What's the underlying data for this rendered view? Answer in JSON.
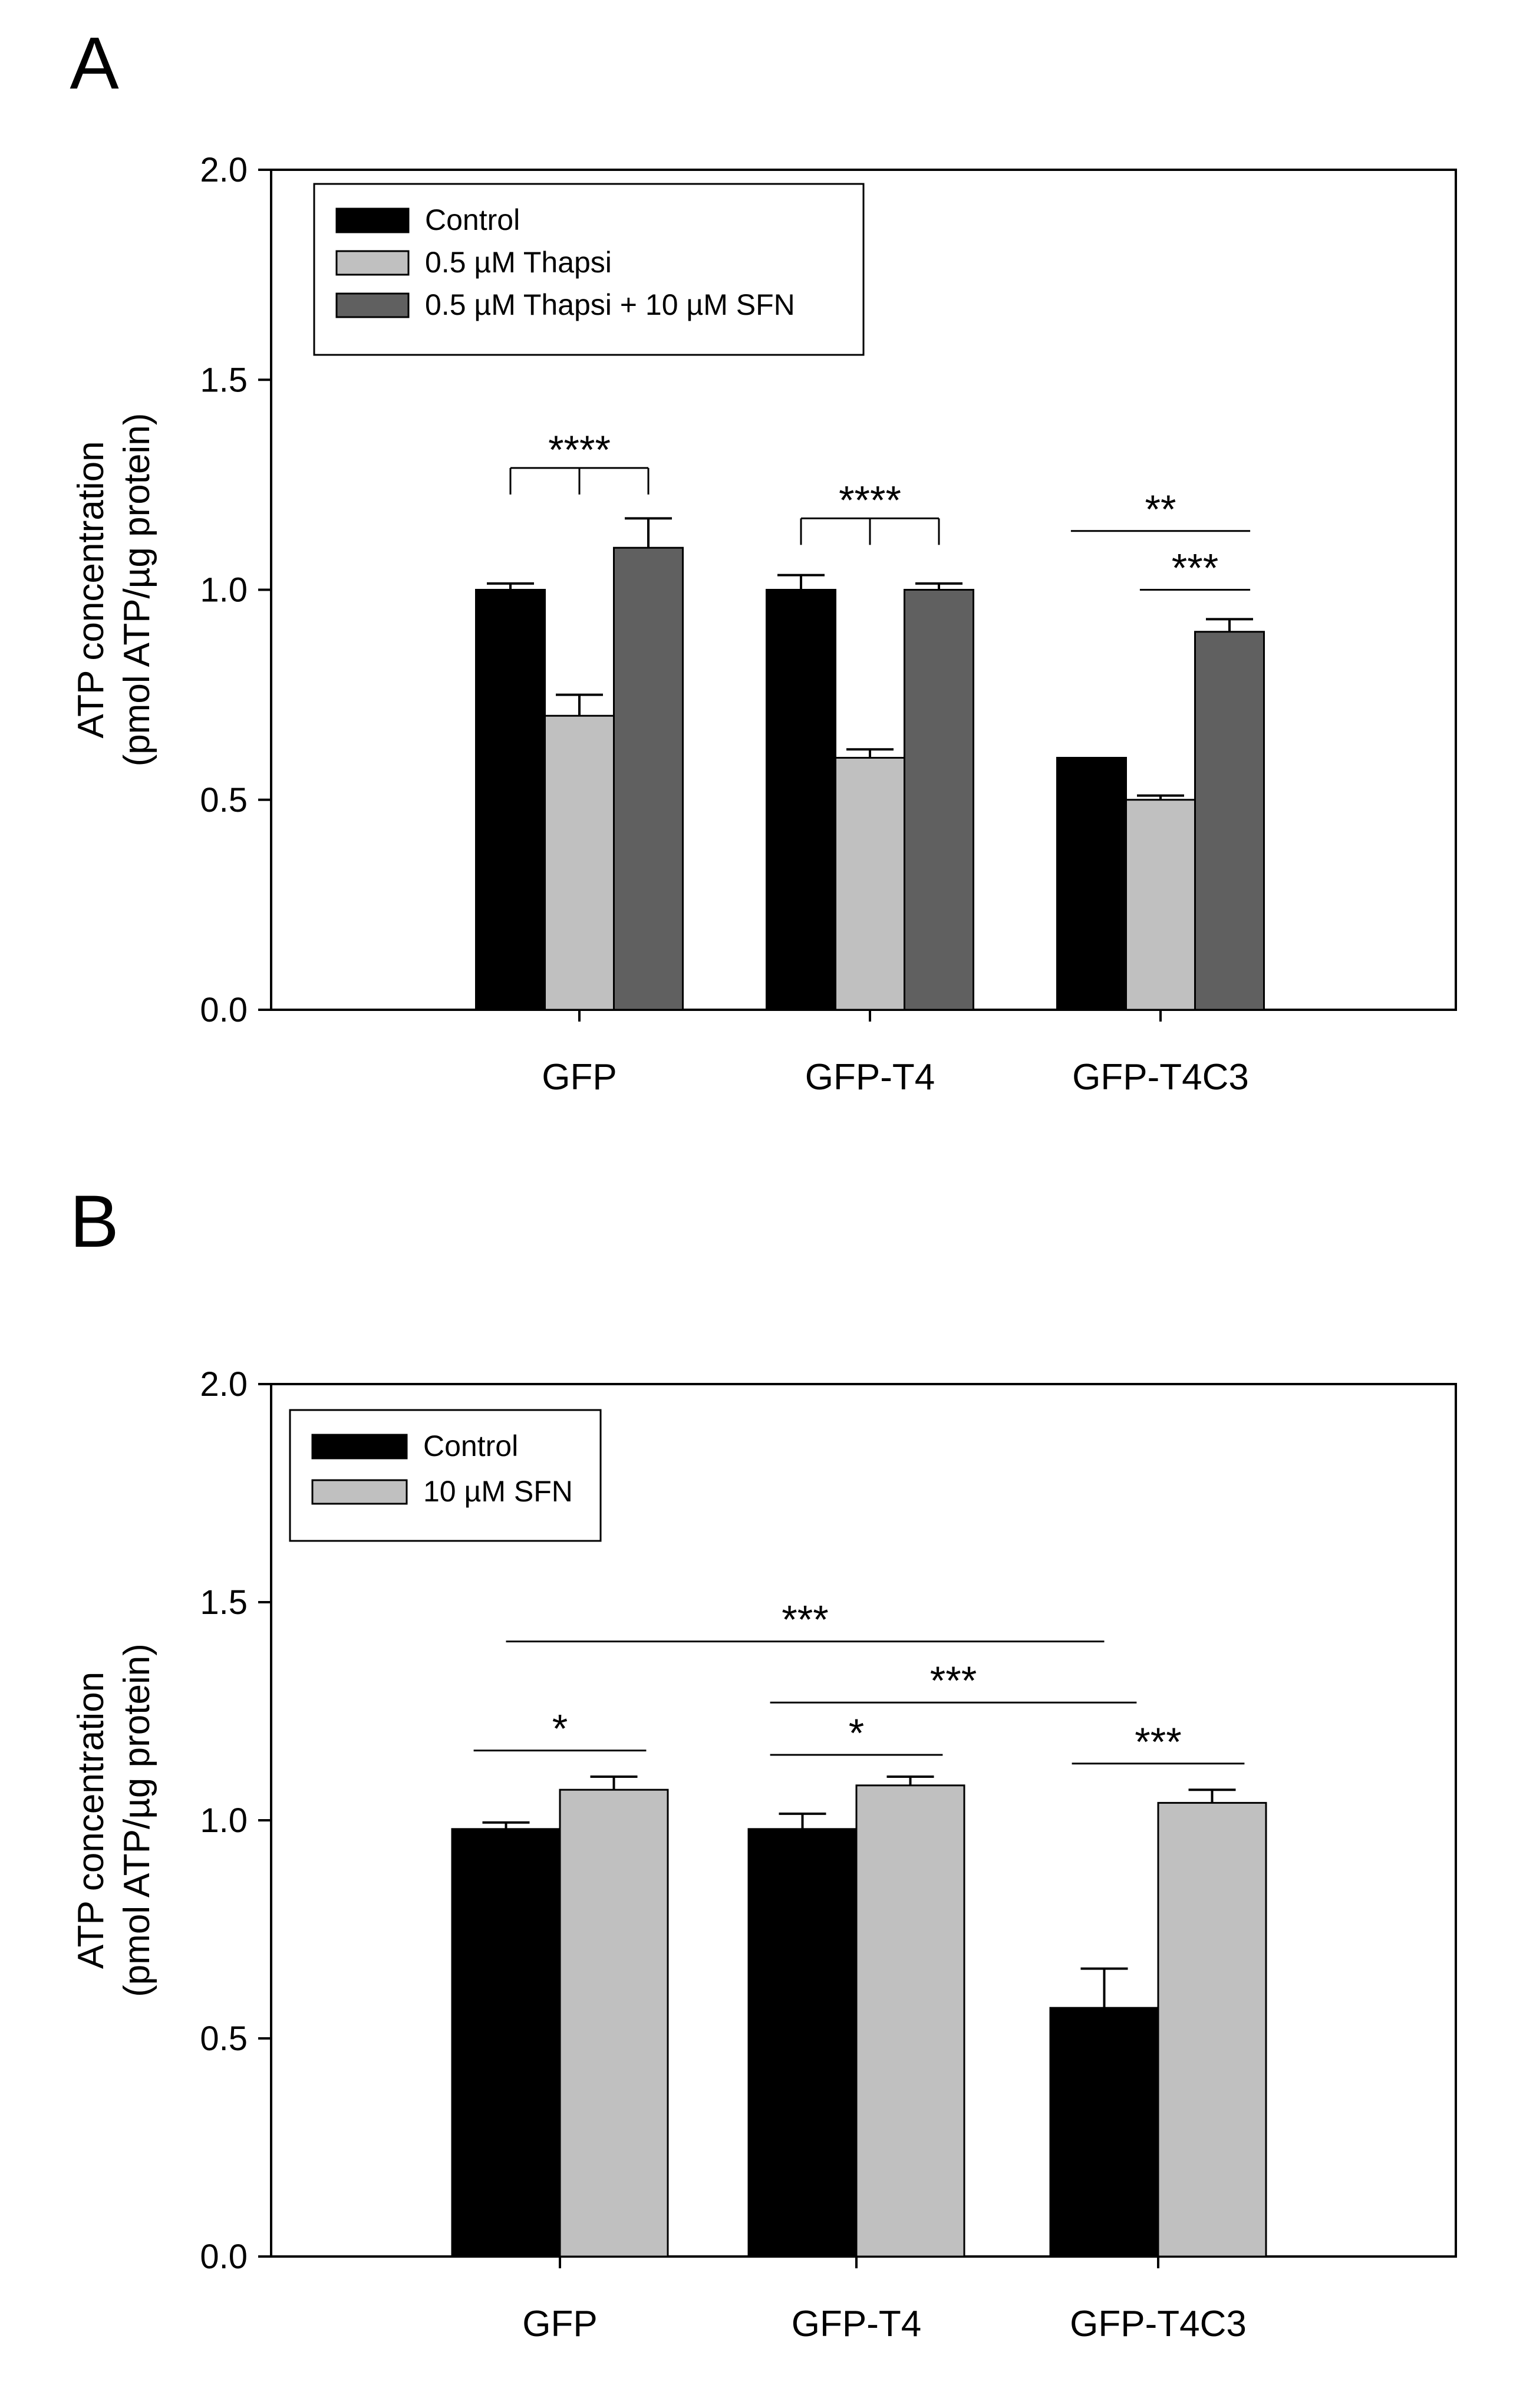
{
  "chart_data": [
    {
      "panel": "A",
      "type": "bar",
      "categories": [
        "GFP",
        "GFP-T4",
        "GFP-T4C3"
      ],
      "ylabel_line1": "ATP concentration",
      "ylabel_line2": "(pmol ATP/µg protein)",
      "ylim": [
        0,
        2
      ],
      "yticks": [
        "0.0",
        "0.5",
        "1.0",
        "1.5",
        "2.0"
      ],
      "legend_position": "top-left",
      "series": [
        {
          "name": "Control",
          "color": "#000000",
          "values": [
            1.0,
            1.0,
            0.6
          ],
          "errors": [
            0.015,
            0.035,
            0.0
          ]
        },
        {
          "name": "0.5 µM Thapsi",
          "color": "#c0c0c0",
          "values": [
            0.7,
            0.6,
            0.5
          ],
          "errors": [
            0.05,
            0.02,
            0.01
          ]
        },
        {
          "name": "0.5 µM Thapsi + 10 µM SFN",
          "color": "#606060",
          "values": [
            1.1,
            1.0,
            0.9
          ],
          "errors": [
            0.07,
            0.015,
            0.03
          ]
        }
      ],
      "annotations": [
        {
          "label": "****",
          "kind": "bracket3",
          "group": 0,
          "level": 1.29
        },
        {
          "label": "****",
          "kind": "bracket3",
          "group": 1,
          "level": 1.17
        },
        {
          "label": "**",
          "kind": "line",
          "from": [
            2,
            0
          ],
          "to": [
            2,
            2
          ],
          "level": 1.14
        },
        {
          "label": "***",
          "kind": "line",
          "from": [
            2,
            1
          ],
          "to": [
            2,
            2
          ],
          "level": 1.0
        }
      ]
    },
    {
      "panel": "B",
      "type": "bar",
      "categories": [
        "GFP",
        "GFP-T4",
        "GFP-T4C3"
      ],
      "ylabel_line1": "ATP concentration",
      "ylabel_line2": "(pmol ATP/µg protein)",
      "ylim": [
        0,
        2
      ],
      "yticks": [
        "0.0",
        "0.5",
        "1.0",
        "1.5",
        "2.0"
      ],
      "legend_position": "top-left",
      "series": [
        {
          "name": "Control",
          "color": "#000000",
          "values": [
            0.98,
            0.98,
            0.57
          ],
          "errors": [
            0.015,
            0.035,
            0.09
          ]
        },
        {
          "name": "10 µM SFN",
          "color": "#c0c0c0",
          "values": [
            1.07,
            1.08,
            1.04
          ],
          "errors": [
            0.03,
            0.02,
            0.03
          ]
        }
      ],
      "annotations": [
        {
          "label": "*",
          "kind": "line",
          "from": [
            0,
            0
          ],
          "to": [
            0,
            1
          ],
          "level": 1.16
        },
        {
          "label": "*",
          "kind": "line",
          "from": [
            1,
            0
          ],
          "to": [
            1,
            1
          ],
          "level": 1.15
        },
        {
          "label": "***",
          "kind": "line",
          "from": [
            2,
            0
          ],
          "to": [
            2,
            1
          ],
          "level": 1.13
        },
        {
          "label": "***",
          "kind": "line",
          "from": [
            0,
            0
          ],
          "to": [
            2,
            0
          ],
          "level": 1.41
        },
        {
          "label": "***",
          "kind": "line",
          "from": [
            1,
            0
          ],
          "to": [
            2,
            0
          ],
          "level": 1.27
        }
      ]
    }
  ]
}
